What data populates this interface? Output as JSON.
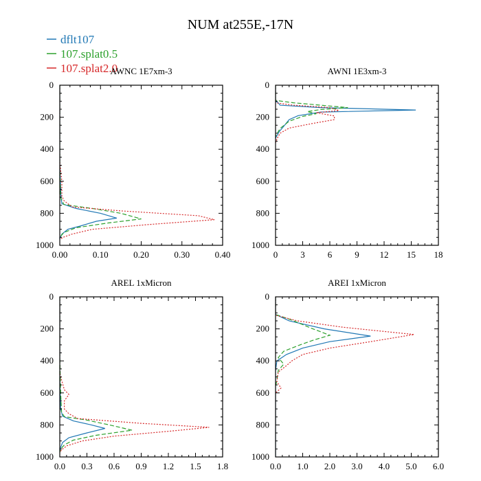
{
  "title": "NUM at255E,-17N",
  "legend": [
    {
      "name": "dflt107",
      "color": "#1f77b4",
      "dash": "solid"
    },
    {
      "name": "107.splat0.5",
      "color": "#2ca02c",
      "dash": "dashed"
    },
    {
      "name": "107.splat2.0",
      "color": "#d62728",
      "dash": "dotted"
    }
  ],
  "chart_data": [
    {
      "type": "line",
      "title": "AWNC  1E7xm-3",
      "xlim": [
        0,
        0.4
      ],
      "xticks": [
        0,
        0.1,
        0.2,
        0.3,
        0.4
      ],
      "xtick_labels": [
        "0.00",
        "0.10",
        "0.20",
        "0.30",
        "0.40"
      ],
      "ylim": [
        1000,
        0
      ],
      "yticks": [
        0,
        200,
        400,
        600,
        800,
        1000
      ],
      "ytick_labels": [
        "0",
        "200",
        "400",
        "600",
        "800",
        "1000"
      ],
      "series": [
        {
          "name": "dflt107",
          "points": [
            [
              0,
              0
            ],
            [
              0,
              500
            ],
            [
              0.003,
              700
            ],
            [
              0.005,
              740
            ],
            [
              0.04,
              770
            ],
            [
              0.1,
              800
            ],
            [
              0.14,
              830
            ],
            [
              0.09,
              850
            ],
            [
              0.05,
              880
            ],
            [
              0.02,
              900
            ],
            [
              0.005,
              930
            ],
            [
              0,
              960
            ]
          ]
        },
        {
          "name": "107.splat0.5",
          "points": [
            [
              0,
              0
            ],
            [
              0,
              500
            ],
            [
              0.002,
              700
            ],
            [
              0.01,
              745
            ],
            [
              0.08,
              770
            ],
            [
              0.15,
              800
            ],
            [
              0.2,
              835
            ],
            [
              0.12,
              860
            ],
            [
              0.04,
              890
            ],
            [
              0.01,
              920
            ],
            [
              0,
              950
            ]
          ]
        },
        {
          "name": "107.splat2.0",
          "points": [
            [
              0,
              0
            ],
            [
              0,
              480
            ],
            [
              0.005,
              600
            ],
            [
              0.005,
              690
            ],
            [
              0.01,
              720
            ],
            [
              0.03,
              760
            ],
            [
              0.15,
              785
            ],
            [
              0.34,
              815
            ],
            [
              0.38,
              840
            ],
            [
              0.22,
              870
            ],
            [
              0.08,
              900
            ],
            [
              0.03,
              930
            ],
            [
              0.008,
              950
            ],
            [
              0,
              965
            ]
          ]
        }
      ]
    },
    {
      "type": "line",
      "title": "AWNI  1E3xm-3",
      "xlim": [
        0,
        18
      ],
      "xticks": [
        0,
        3,
        6,
        9,
        12,
        15,
        18
      ],
      "xtick_labels": [
        "0",
        "3",
        "6",
        "9",
        "12",
        "15",
        "18"
      ],
      "ylim": [
        1000,
        0
      ],
      "yticks": [
        0,
        200,
        400,
        600,
        800,
        1000
      ],
      "ytick_labels": [
        "0",
        "200",
        "400",
        "600",
        "800",
        "1000"
      ],
      "series": [
        {
          "name": "dflt107",
          "points": [
            [
              0,
              0
            ],
            [
              0,
              100
            ],
            [
              0.3,
              110
            ],
            [
              0.5,
              125
            ],
            [
              5,
              140
            ],
            [
              15.5,
              155
            ],
            [
              5,
              168
            ],
            [
              2.5,
              190
            ],
            [
              1.5,
              215
            ],
            [
              1,
              250
            ],
            [
              0.4,
              290
            ],
            [
              0,
              330
            ]
          ]
        },
        {
          "name": "107.splat0.5",
          "points": [
            [
              0,
              0
            ],
            [
              0,
              95
            ],
            [
              2,
              110
            ],
            [
              6,
              130
            ],
            [
              8,
              140
            ],
            [
              5,
              152
            ],
            [
              3.5,
              165
            ],
            [
              4.5,
              178
            ],
            [
              3,
              195
            ],
            [
              1.5,
              225
            ],
            [
              0.5,
              270
            ],
            [
              0,
              320
            ]
          ]
        },
        {
          "name": "107.splat2.0",
          "points": [
            [
              0,
              0
            ],
            [
              0,
              110
            ],
            [
              2,
              125
            ],
            [
              6,
              140
            ],
            [
              7,
              158
            ],
            [
              4.5,
              172
            ],
            [
              6.5,
              192
            ],
            [
              6.5,
              215
            ],
            [
              4,
              240
            ],
            [
              1.5,
              268
            ],
            [
              0.5,
              300
            ],
            [
              0.2,
              330
            ],
            [
              0,
              360
            ]
          ]
        }
      ]
    },
    {
      "type": "line",
      "title": "AREL  1xMicron",
      "xlim": [
        0,
        1.8
      ],
      "xticks": [
        0,
        0.3,
        0.6,
        0.9,
        1.2,
        1.5,
        1.8
      ],
      "xtick_labels": [
        "0.0",
        "0.3",
        "0.6",
        "0.9",
        "1.2",
        "1.5",
        "1.8"
      ],
      "ylim": [
        1000,
        0
      ],
      "yticks": [
        0,
        200,
        400,
        600,
        800,
        1000
      ],
      "ytick_labels": [
        "0",
        "200",
        "400",
        "600",
        "800",
        "1000"
      ],
      "series": [
        {
          "name": "dflt107",
          "points": [
            [
              0,
              0
            ],
            [
              0,
              500
            ],
            [
              0.01,
              700
            ],
            [
              0.03,
              745
            ],
            [
              0.15,
              775
            ],
            [
              0.35,
              800
            ],
            [
              0.5,
              822
            ],
            [
              0.3,
              850
            ],
            [
              0.1,
              880
            ],
            [
              0.03,
              910
            ],
            [
              0.01,
              940
            ],
            [
              0,
              965
            ]
          ]
        },
        {
          "name": "107.splat0.5",
          "points": [
            [
              0,
              0
            ],
            [
              0,
              380
            ],
            [
              0.01,
              600
            ],
            [
              0.02,
              720
            ],
            [
              0.05,
              748
            ],
            [
              0.3,
              770
            ],
            [
              0.55,
              800
            ],
            [
              0.8,
              833
            ],
            [
              0.4,
              865
            ],
            [
              0.15,
              895
            ],
            [
              0.05,
              925
            ],
            [
              0.01,
              950
            ],
            [
              0,
              970
            ]
          ]
        },
        {
          "name": "107.splat2.0",
          "points": [
            [
              0,
              0
            ],
            [
              0,
              480
            ],
            [
              0.05,
              580
            ],
            [
              0.1,
              610
            ],
            [
              0.05,
              650
            ],
            [
              0.05,
              700
            ],
            [
              0.1,
              730
            ],
            [
              0.2,
              760
            ],
            [
              0.9,
              790
            ],
            [
              1.65,
              815
            ],
            [
              1.2,
              840
            ],
            [
              0.6,
              870
            ],
            [
              0.25,
              900
            ],
            [
              0.08,
              930
            ],
            [
              0.02,
              955
            ],
            [
              0,
              975
            ]
          ]
        }
      ]
    },
    {
      "type": "line",
      "title": "AREI  1xMicron",
      "xlim": [
        0,
        6
      ],
      "xticks": [
        0,
        1,
        2,
        3,
        4,
        5,
        6
      ],
      "xtick_labels": [
        "0.0",
        "1.0",
        "2.0",
        "3.0",
        "4.0",
        "5.0",
        "6.0"
      ],
      "ylim": [
        1000,
        0
      ],
      "yticks": [
        0,
        200,
        400,
        600,
        800,
        1000
      ],
      "ytick_labels": [
        "0",
        "200",
        "400",
        "600",
        "800",
        "1000"
      ],
      "series": [
        {
          "name": "dflt107",
          "points": [
            [
              0,
              0
            ],
            [
              0,
              110
            ],
            [
              0.5,
              150
            ],
            [
              1.8,
              200
            ],
            [
              3.5,
              245
            ],
            [
              2,
              280
            ],
            [
              1,
              320
            ],
            [
              0.4,
              360
            ],
            [
              0.05,
              400
            ],
            [
              0,
              460
            ],
            [
              0,
              1000
            ]
          ]
        },
        {
          "name": "107.splat0.5",
          "points": [
            [
              0,
              0
            ],
            [
              0,
              110
            ],
            [
              0.6,
              145
            ],
            [
              1.3,
              195
            ],
            [
              2.0,
              240
            ],
            [
              1.4,
              270
            ],
            [
              0.9,
              300
            ],
            [
              0.3,
              340
            ],
            [
              0.1,
              380
            ],
            [
              0.3,
              420
            ],
            [
              0.1,
              460
            ],
            [
              0.05,
              520
            ],
            [
              0,
              560
            ]
          ]
        },
        {
          "name": "107.splat2.0",
          "points": [
            [
              0,
              0
            ],
            [
              0,
              115
            ],
            [
              0.8,
              150
            ],
            [
              2.5,
              190
            ],
            [
              5.1,
              235
            ],
            [
              3.5,
              280
            ],
            [
              2,
              320
            ],
            [
              1,
              360
            ],
            [
              0.6,
              400
            ],
            [
              0.4,
              430
            ],
            [
              0.1,
              470
            ],
            [
              0.05,
              530
            ],
            [
              0.2,
              570
            ],
            [
              0,
              600
            ]
          ]
        }
      ]
    }
  ]
}
